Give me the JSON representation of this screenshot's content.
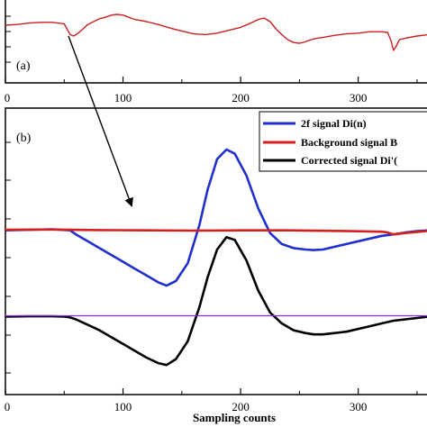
{
  "chart_data": [
    {
      "panel": "(a)",
      "type": "line",
      "xlim": [
        0,
        360
      ],
      "ylim": [
        0,
        1
      ],
      "xticks": [
        0,
        100,
        200,
        300
      ],
      "xtick_labels": [
        "0",
        "100",
        "200",
        "300"
      ],
      "series": [
        {
          "color": "#cc1f1f",
          "x": [
            0,
            10,
            20,
            30,
            40,
            50,
            55,
            58,
            62,
            66,
            70,
            75,
            80,
            85,
            90,
            95,
            100,
            105,
            110,
            120,
            130,
            140,
            150,
            160,
            170,
            180,
            190,
            200,
            210,
            215,
            220,
            225,
            230,
            235,
            240,
            245,
            250,
            255,
            260,
            265,
            270,
            280,
            290,
            300,
            310,
            320,
            325,
            328,
            330,
            332,
            335,
            340,
            350,
            360
          ],
          "y": [
            0.75,
            0.76,
            0.78,
            0.79,
            0.79,
            0.77,
            0.62,
            0.6,
            0.64,
            0.7,
            0.76,
            0.8,
            0.84,
            0.86,
            0.89,
            0.9,
            0.89,
            0.86,
            0.83,
            0.8,
            0.76,
            0.71,
            0.67,
            0.63,
            0.62,
            0.64,
            0.68,
            0.72,
            0.79,
            0.83,
            0.85,
            0.8,
            0.7,
            0.62,
            0.55,
            0.51,
            0.5,
            0.52,
            0.55,
            0.57,
            0.58,
            0.61,
            0.63,
            0.64,
            0.66,
            0.66,
            0.65,
            0.53,
            0.4,
            0.45,
            0.55,
            0.57,
            0.6,
            0.62
          ]
        }
      ]
    },
    {
      "panel": "(b)",
      "type": "line",
      "xlim": [
        0,
        360
      ],
      "ylim": [
        0,
        1
      ],
      "xticks": [
        0,
        100,
        200,
        300
      ],
      "xtick_labels": [
        "0",
        "100",
        "200",
        "300"
      ],
      "xlabel": "Sampling counts",
      "legend": "top-right",
      "series": [
        {
          "name": "2f signal  Di(n)",
          "color": "#1f2fd0",
          "x": [
            0,
            20,
            40,
            55,
            60,
            70,
            80,
            90,
            100,
            110,
            120,
            130,
            137,
            145,
            155,
            165,
            172,
            180,
            188,
            195,
            205,
            215,
            225,
            235,
            245,
            255,
            262,
            270,
            280,
            290,
            300,
            310,
            320,
            330,
            340,
            350,
            360
          ],
          "y": [
            0.58,
            0.582,
            0.584,
            0.58,
            0.565,
            0.54,
            0.515,
            0.49,
            0.465,
            0.44,
            0.415,
            0.39,
            0.378,
            0.395,
            0.46,
            0.6,
            0.73,
            0.84,
            0.875,
            0.86,
            0.78,
            0.66,
            0.57,
            0.53,
            0.515,
            0.51,
            0.508,
            0.51,
            0.52,
            0.53,
            0.54,
            0.55,
            0.56,
            0.565,
            0.572,
            0.577,
            0.58
          ]
        },
        {
          "name": "Background signal B",
          "color": "#d42020",
          "x": [
            0,
            40,
            80,
            120,
            160,
            200,
            240,
            280,
            320,
            325,
            330,
            340,
            360
          ],
          "y": [
            0.582,
            0.583,
            0.581,
            0.58,
            0.579,
            0.58,
            0.58,
            0.578,
            0.575,
            0.572,
            0.565,
            0.57,
            0.578
          ]
        },
        {
          "name": "Corrected signal Di'(",
          "color": "#000000",
          "x": [
            0,
            20,
            40,
            50,
            55,
            60,
            70,
            80,
            90,
            100,
            110,
            120,
            130,
            137,
            145,
            155,
            165,
            172,
            180,
            188,
            195,
            205,
            215,
            225,
            235,
            245,
            255,
            262,
            270,
            280,
            290,
            300,
            310,
            320,
            330,
            340,
            350,
            360
          ],
          "y": [
            0.265,
            0.266,
            0.266,
            0.265,
            0.262,
            0.255,
            0.235,
            0.215,
            0.19,
            0.165,
            0.14,
            0.115,
            0.095,
            0.088,
            0.11,
            0.175,
            0.3,
            0.41,
            0.51,
            0.555,
            0.545,
            0.47,
            0.36,
            0.28,
            0.24,
            0.215,
            0.205,
            0.2,
            0.2,
            0.205,
            0.21,
            0.22,
            0.23,
            0.24,
            0.25,
            0.255,
            0.26,
            0.265
          ]
        },
        {
          "color": "#8a2be2",
          "x": [
            0,
            360
          ],
          "y": [
            0.268,
            0.268
          ]
        }
      ]
    }
  ]
}
